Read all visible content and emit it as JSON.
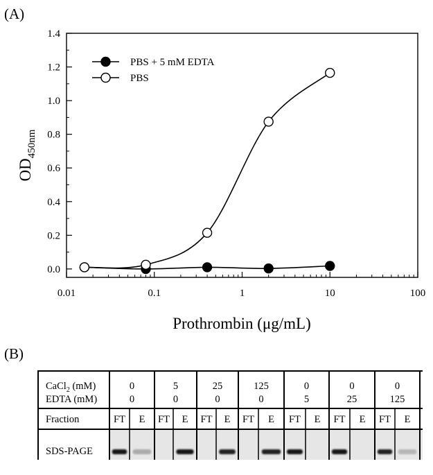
{
  "panel_a_label": "(A)",
  "panel_b_label": "(B)",
  "chart_data": {
    "type": "scatter",
    "xlabel": "Prothrombin (μg/mL)",
    "ylabel": "OD",
    "ylabel_subscript": "450nm",
    "xscale": "log",
    "xlim": [
      0.01,
      100
    ],
    "ylim": [
      -0.05,
      1.4
    ],
    "x_ticks": [
      0.01,
      0.1,
      1,
      10,
      100
    ],
    "x_tick_labels": [
      "0.01",
      "0.1",
      "1",
      "10",
      "100"
    ],
    "y_ticks": [
      0.0,
      0.2,
      0.4,
      0.6,
      0.8,
      1.0,
      1.2,
      1.4
    ],
    "y_tick_labels": [
      "0.0",
      "0.2",
      "0.4",
      "0.6",
      "0.8",
      "1.0",
      "1.2",
      "1.4"
    ],
    "grid": false,
    "legend_position": "top-left",
    "series": [
      {
        "name": "PBS + 5 mM EDTA",
        "marker": "filled-circle",
        "color": "#000000",
        "x": [
          0.016,
          0.08,
          0.4,
          2,
          10
        ],
        "y": [
          0.01,
          0.0,
          0.01,
          0.003,
          0.018
        ]
      },
      {
        "name": "PBS",
        "marker": "open-circle",
        "color": "#000000",
        "x": [
          0.016,
          0.08,
          0.4,
          2,
          10
        ],
        "y": [
          0.01,
          0.025,
          0.215,
          0.875,
          1.165
        ]
      }
    ]
  },
  "gel": {
    "cacl2_label": "CaCl",
    "cacl2_sub": "2",
    "cacl2_unit": " (mM)",
    "edta_label": "EDTA (mM)",
    "fraction_label": "Fraction",
    "sds_label": "SDS-PAGE",
    "conditions": [
      {
        "cacl2": "0",
        "edta": "0",
        "bands": [
          0.95,
          0.25
        ]
      },
      {
        "cacl2": "5",
        "edta": "0",
        "bands": [
          0.0,
          0.95
        ]
      },
      {
        "cacl2": "25",
        "edta": "0",
        "bands": [
          0.0,
          0.9
        ]
      },
      {
        "cacl2": "125",
        "edta": "0",
        "bands": [
          0.0,
          0.9
        ]
      },
      {
        "cacl2": "0",
        "edta": "5",
        "bands": [
          0.95,
          0.0
        ]
      },
      {
        "cacl2": "0",
        "edta": "25",
        "bands": [
          0.95,
          0.0
        ]
      },
      {
        "cacl2": "0",
        "edta": "125",
        "bands": [
          0.9,
          0.2
        ]
      }
    ],
    "fractions": [
      "FT",
      "E"
    ]
  }
}
